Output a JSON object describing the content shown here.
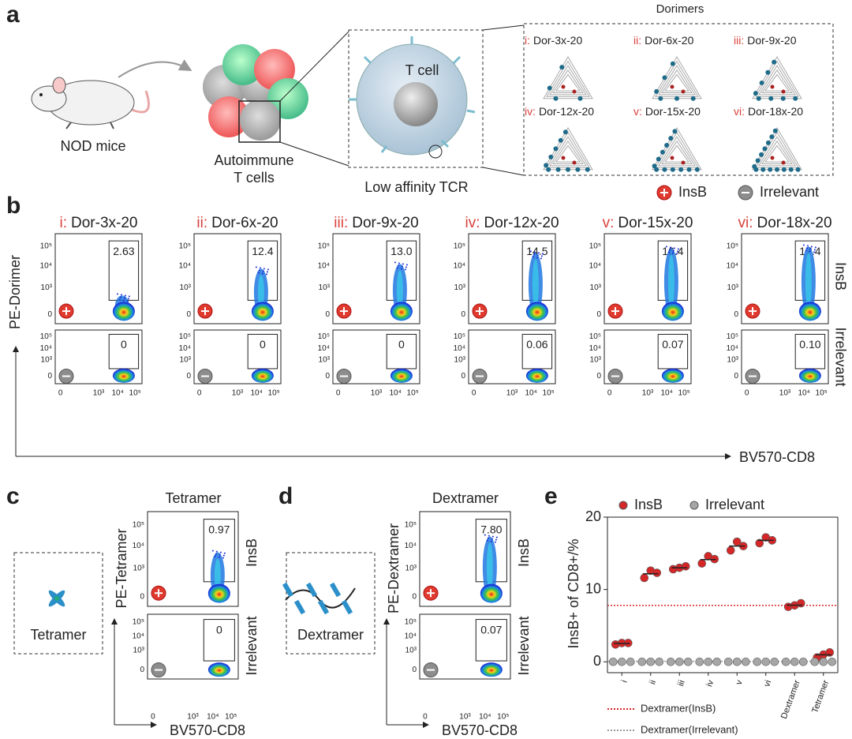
{
  "panel_a": {
    "label": "a",
    "mouse": "NOD mice",
    "cells": [
      "Autoimmune",
      "T cells"
    ],
    "t_cell": "T cell",
    "tcr": "Low affinity TCR",
    "dorimers_title": "Dorimers",
    "dorimers": [
      {
        "index": "i:",
        "name": "Dor-3x-20"
      },
      {
        "index": "ii:",
        "name": "Dor-6x-20"
      },
      {
        "index": "iii:",
        "name": "Dor-9x-20"
      },
      {
        "index": "iv:",
        "name": "Dor-12x-20"
      },
      {
        "index": "v:",
        "name": "Dor-15x-20"
      },
      {
        "index": "vi:",
        "name": "Dor-18x-20"
      }
    ],
    "legend": {
      "insb": "InsB",
      "irrelevant": "Irrelevant"
    }
  },
  "flow_axes": {
    "yticks": [
      "10⁵",
      "10⁴",
      "10³",
      "0"
    ],
    "xticks": [
      "0",
      "10³",
      "10⁴",
      "10⁵"
    ]
  },
  "panel_b": {
    "label": "b",
    "y_axis": "PE-Dorimer",
    "x_axis": "BV570-CD8",
    "rows": [
      "InsB",
      "Irrelevant"
    ],
    "plots": [
      {
        "insb_gate": "2.63",
        "irrelevant_gate": "0"
      },
      {
        "insb_gate": "12.4",
        "irrelevant_gate": "0"
      },
      {
        "insb_gate": "13.0",
        "irrelevant_gate": "0"
      },
      {
        "insb_gate": "14.5",
        "irrelevant_gate": "0.06"
      },
      {
        "insb_gate": "16.4",
        "irrelevant_gate": "0.07"
      },
      {
        "insb_gate": "17.4",
        "irrelevant_gate": "0.10"
      }
    ]
  },
  "panel_c": {
    "label": "c",
    "icon_label": "Tetramer",
    "title": "Tetramer",
    "insb_gate": "0.97",
    "irrelevant_gate": "0",
    "y_axis": "PE-Tetramer",
    "x_axis": "BV570-CD8",
    "rows": [
      "InsB",
      "Irrelevant"
    ]
  },
  "panel_d": {
    "label": "d",
    "icon_label": "Dextramer",
    "title": "Dextramer",
    "insb_gate": "7.80",
    "irrelevant_gate": "0.07",
    "y_axis": "PE-Dextramer",
    "x_axis": "BV570-CD8",
    "rows": [
      "InsB",
      "Irrelevant"
    ]
  },
  "panel_e": {
    "label": "e"
  },
  "chart_data": {
    "type": "scatter",
    "categories": [
      "i",
      "ii",
      "iii",
      "iv",
      "v",
      "vi",
      "Dextramer",
      "Tetramer"
    ],
    "ylabel": "InsB+ of CD8+/%",
    "ylim": [
      -1.5,
      20
    ],
    "yticks": [
      0,
      10,
      20
    ],
    "series": [
      {
        "name": "InsB",
        "color": "#d62728",
        "values": [
          [
            2.4,
            2.6,
            2.6
          ],
          [
            11.6,
            12.6,
            12.3
          ],
          [
            12.8,
            13.0,
            13.2
          ],
          [
            13.6,
            14.6,
            14.2
          ],
          [
            15.4,
            16.6,
            16.0
          ],
          [
            16.4,
            17.2,
            16.8
          ],
          [
            7.6,
            7.8,
            8.1
          ],
          [
            0.6,
            1.0,
            1.3
          ]
        ]
      },
      {
        "name": "Irrelevant",
        "color": "#a6a6a6",
        "values": [
          [
            0,
            0,
            0
          ],
          [
            0,
            0,
            0
          ],
          [
            0,
            0,
            0
          ],
          [
            0,
            0,
            0
          ],
          [
            0,
            0,
            0
          ],
          [
            0,
            0,
            0
          ],
          [
            0,
            0,
            0
          ],
          [
            0,
            0,
            0
          ]
        ]
      }
    ],
    "reference_lines": [
      {
        "name": "Dextramer(InsB)",
        "value": 7.8,
        "color": "#d62728"
      },
      {
        "name": "Dextramer(Irrelevant)",
        "value": 0.07,
        "color": "#999999"
      }
    ]
  }
}
